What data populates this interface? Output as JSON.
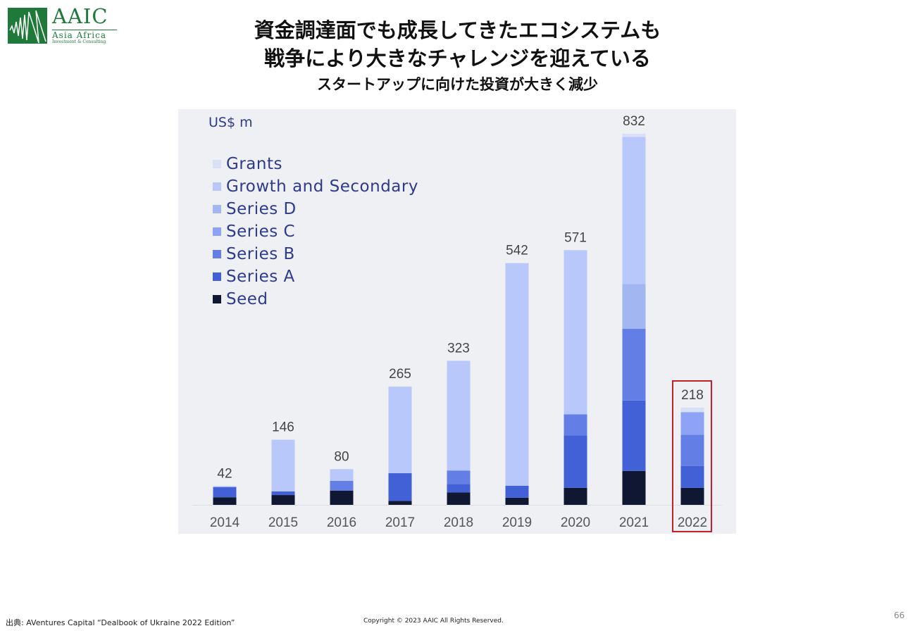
{
  "logo": {
    "main": "AAIC",
    "sub1": "Asia Africa",
    "sub2": "Investment & Consulting",
    "color": "#1f7a3a"
  },
  "title": {
    "line1": "資金調達面でも成長してきたエコシステムも",
    "line2": "戦争により大きなチャレンジを迎えている",
    "subtitle": "スタートアップに向けた投資が大きく減少"
  },
  "chart_data": {
    "type": "bar",
    "stacked": true,
    "unit_label": "US$ m",
    "categories": [
      "2014",
      "2015",
      "2016",
      "2017",
      "2018",
      "2019",
      "2020",
      "2021",
      "2022"
    ],
    "totals": [
      42,
      146,
      80,
      265,
      323,
      542,
      571,
      832,
      218
    ],
    "series": [
      {
        "name": "Seed",
        "color": "#0f1733",
        "values": [
          17,
          22,
          32,
          9,
          28,
          16,
          38,
          76,
          38
        ]
      },
      {
        "name": "Series A",
        "color": "#4361d6",
        "values": [
          23,
          8,
          0,
          62,
          19,
          27,
          118,
          158,
          49
        ]
      },
      {
        "name": "Series B",
        "color": "#637ee5",
        "values": [
          0,
          0,
          22,
          0,
          30,
          0,
          47,
          161,
          70
        ]
      },
      {
        "name": "Series C",
        "color": "#8ea3f6",
        "values": [
          0,
          0,
          0,
          0,
          0,
          0,
          0,
          0,
          51
        ]
      },
      {
        "name": "Series D",
        "color": "#a2b6f1",
        "values": [
          0,
          0,
          0,
          0,
          0,
          0,
          0,
          100,
          0
        ]
      },
      {
        "name": "Growth and Secondary",
        "color": "#b9c8fb",
        "values": [
          2,
          116,
          26,
          194,
          246,
          499,
          368,
          330,
          0
        ]
      },
      {
        "name": "Grants",
        "color": "#dadff8",
        "values": [
          0,
          0,
          0,
          0,
          0,
          0,
          0,
          7,
          10
        ]
      }
    ],
    "legend_order": [
      "Grants",
      "Growth and Secondary",
      "Series D",
      "Series C",
      "Series B",
      "Series A",
      "Seed"
    ],
    "ylim": [
      0,
      832
    ],
    "grid": false,
    "legend_position": "top-left",
    "highlighted_category": "2022",
    "highlight_color": "#c8202a"
  },
  "footer": {
    "source": "出典: AVentures Capital “Dealbook of Ukraine 2022 Edition”",
    "copyright": "Copyright © 2023 AAIC All Rights Reserved.",
    "page_number": "66"
  }
}
